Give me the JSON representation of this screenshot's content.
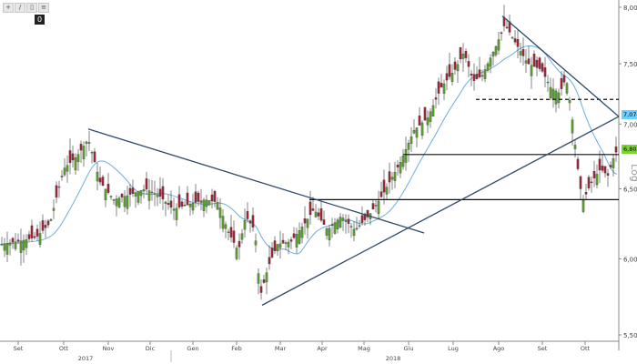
{
  "toolbar": {
    "buttons": [
      "+",
      "/",
      "▯",
      "≡"
    ],
    "badge": "0"
  },
  "chart_data": {
    "type": "candlestick",
    "scale": "log",
    "scale_label": "Log",
    "ylim": [
      5.5,
      8.0
    ],
    "y_ticks": [
      "5,50",
      "6,00",
      "6,50",
      "7,00",
      "7,50",
      "8,00"
    ],
    "x_ticks": [
      "Set",
      "Ott",
      "Nov",
      "Dic",
      "Gen",
      "Feb",
      "Mar",
      "Apr",
      "Mag",
      "Giu",
      "Lug",
      "Ago",
      "Set",
      "Ott"
    ],
    "year_labels": [
      "2017",
      "2018"
    ],
    "price_tags": [
      {
        "value": 7.0748,
        "label": "7,0748",
        "color": "#6bd0ff"
      },
      {
        "value": 6.8025,
        "label": "6,8025",
        "color": "#7ad62a"
      }
    ],
    "horizontal_levels": [
      {
        "value": 7.2,
        "style": "dashed"
      },
      {
        "value": 6.76,
        "style": "solid"
      },
      {
        "value": 6.42,
        "style": "solid"
      }
    ],
    "trendlines": [
      {
        "from": [
          "Ott 2017",
          6.96
        ],
        "to": [
          "Mag 2018",
          6.18
        ]
      },
      {
        "from": [
          "Feb 2018",
          5.69
        ],
        "to": [
          "Ott 2018",
          7.06
        ]
      },
      {
        "from": [
          "Ago 2018",
          7.92
        ],
        "to": [
          "Ott 2018",
          7.06
        ]
      }
    ],
    "moving_average": {
      "color": "#6aaee0"
    },
    "colors": {
      "up": "#5aa02c",
      "down": "#a0263a"
    }
  }
}
